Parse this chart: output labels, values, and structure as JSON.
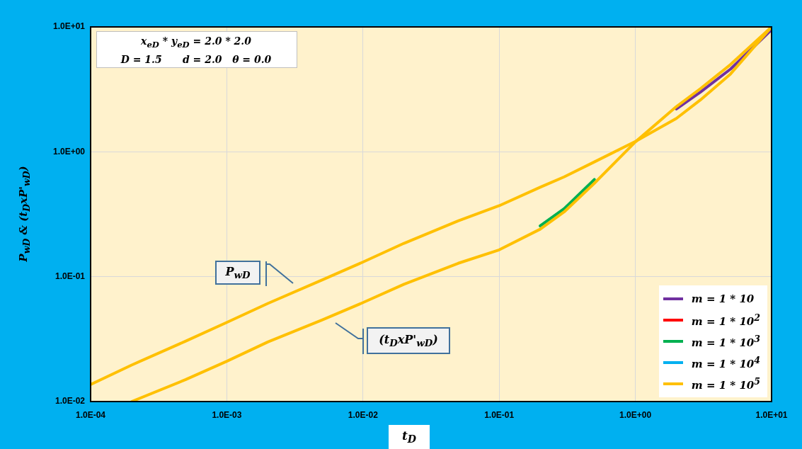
{
  "chart_data": {
    "type": "line",
    "xlabel": "t$_{D}$",
    "ylabel": "P$_{wD}$ & (t$_{D}$xP'$_{wD}$)",
    "annotations": [
      "x$_{eD}$ * y$_{eD}$ = 2.0 * 2.0",
      "D = 1.5      d = 2.0   θ = 0.0",
      "P$_{wD}$",
      "(t$_{D}$xP'$_{wD}$)"
    ],
    "log": "xy",
    "grid": true,
    "legend": "bottom right",
    "marker": "none",
    "line_style": "solid",
    "xlim": [
      0.0001,
      10
    ],
    "ylim": [
      0.01,
      10
    ],
    "xticks": [
      {
        "value": 0.0001,
        "label": "1.0E-04"
      },
      {
        "value": 0.001,
        "label": "1.0E-03"
      },
      {
        "value": 0.01,
        "label": "1.0E-02"
      },
      {
        "value": 0.1,
        "label": "1.0E-01"
      },
      {
        "value": 1,
        "label": "1.0E+00"
      },
      {
        "value": 10,
        "label": "1.0E+01"
      }
    ],
    "yticks": [
      {
        "value": 0.01,
        "label": "1.0E-02"
      },
      {
        "value": 0.1,
        "label": "1.0E-01"
      },
      {
        "value": 1,
        "label": "1.0E+00"
      },
      {
        "value": 10,
        "label": "1.0E+01"
      }
    ],
    "x": [
      0.0001,
      0.0002,
      0.0005,
      0.001,
      0.002,
      0.005,
      0.01,
      0.02,
      0.05,
      0.1,
      0.2,
      0.3,
      0.5,
      1,
      2,
      3,
      5,
      10
    ],
    "series": [
      {
        "name": "m = 1 * 10",
        "color": "#7030a0",
        "values": [
          null,
          null,
          null,
          null,
          null,
          null,
          null,
          null,
          null,
          null,
          null,
          null,
          null,
          null,
          null,
          null,
          null,
          null
        ]
      },
      {
        "color": "#7030a0",
        "values": [
          null,
          null,
          null,
          null,
          null,
          null,
          null,
          null,
          null,
          null,
          null,
          null,
          null,
          null,
          2.2,
          3.0,
          4.6,
          9.5
        ]
      },
      {
        "name": "m = 1 * 10$^{2}$",
        "color": "#ff0000",
        "values": [
          null,
          null,
          null,
          null,
          null,
          null,
          null,
          null,
          null,
          null,
          null,
          null,
          null,
          null,
          null,
          null,
          null,
          null
        ]
      },
      {
        "name": "m = 1 * 10$^{3}$",
        "color": "#00b050",
        "values": [
          null,
          null,
          null,
          null,
          null,
          null,
          null,
          null,
          null,
          null,
          0.255,
          0.35,
          0.6,
          null,
          null,
          null,
          null,
          null
        ]
      },
      {
        "name": "m = 1 * 10$^{4}$",
        "color": "#00b0f0",
        "values": [
          null,
          null,
          null,
          null,
          null,
          null,
          null,
          null,
          null,
          null,
          null,
          null,
          null,
          null,
          null,
          null,
          null,
          null
        ]
      },
      {
        "name": "m = 1 * 10$^{5}$",
        "color": "#ffc000",
        "values": [
          0.0137,
          0.0196,
          0.0305,
          0.043,
          0.061,
          0.094,
          0.131,
          0.185,
          0.28,
          0.37,
          0.52,
          0.63,
          0.83,
          1.21,
          1.85,
          2.6,
          4.2,
          10
        ]
      },
      {
        "color": "#ffc000",
        "values": [
          null,
          0.01,
          0.015,
          0.021,
          0.03,
          0.045,
          0.062,
          0.087,
          0.128,
          0.164,
          0.24,
          0.33,
          0.56,
          1.2,
          2.3,
          3.2,
          5.0,
          10
        ]
      }
    ]
  }
}
